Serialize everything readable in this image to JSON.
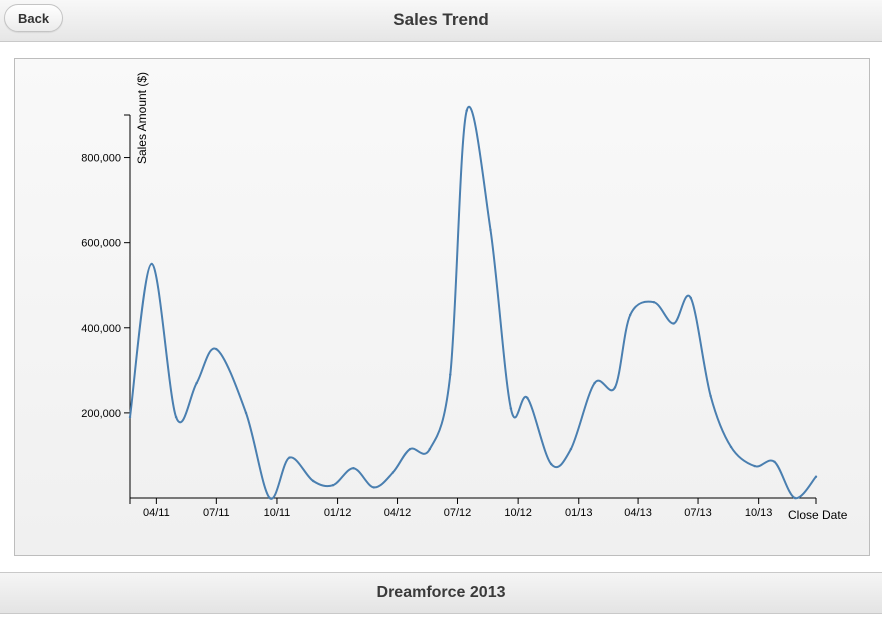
{
  "header": {
    "back_label": "Back",
    "title": "Sales Trend"
  },
  "footer": {
    "title": "Dreamforce 2013"
  },
  "chart_data": {
    "type": "line",
    "xlabel": "Close Date",
    "ylabel": "Sales Amount ($)",
    "ylim": [
      0,
      900000
    ],
    "yticks": [
      200000,
      400000,
      600000,
      800000
    ],
    "ytick_labels": [
      "200,000",
      "400,000",
      "600,000",
      "800,000"
    ],
    "xlim": [
      "2011-02-20",
      "2013-12-27"
    ],
    "xticks": [
      "2011-04-01",
      "2011-07-01",
      "2011-10-01",
      "2012-01-01",
      "2012-04-01",
      "2012-07-01",
      "2012-10-01",
      "2013-01-01",
      "2013-04-01",
      "2013-07-01",
      "2013-10-01"
    ],
    "xtick_labels": [
      "04/11",
      "07/11",
      "10/11",
      "01/12",
      "04/12",
      "07/12",
      "10/12",
      "01/13",
      "04/13",
      "07/13",
      "10/13"
    ],
    "grid": false,
    "line_color": "#4a7fb0",
    "series": [
      {
        "x": [
          "2011-02-20",
          "2011-03-25",
          "2011-05-01",
          "2011-06-01",
          "2011-07-01",
          "2011-08-15",
          "2011-09-20",
          "2011-10-20",
          "2011-11-25",
          "2011-12-25",
          "2012-01-25",
          "2012-02-25",
          "2012-03-25",
          "2012-04-20",
          "2012-05-20",
          "2012-06-20",
          "2012-07-15",
          "2012-08-20",
          "2012-09-20",
          "2012-10-15",
          "2012-11-20",
          "2012-12-20",
          "2013-01-25",
          "2013-02-25",
          "2013-03-20",
          "2013-04-25",
          "2013-05-25",
          "2013-06-20",
          "2013-07-20",
          "2013-08-20",
          "2013-09-25",
          "2013-10-25",
          "2013-11-25",
          "2013-12-27"
        ],
        "y": [
          190000,
          550000,
          190000,
          270000,
          350000,
          200000,
          0,
          95000,
          40000,
          30000,
          70000,
          25000,
          60000,
          115000,
          115000,
          290000,
          910000,
          630000,
          210000,
          235000,
          80000,
          115000,
          270000,
          260000,
          430000,
          460000,
          410000,
          470000,
          240000,
          120000,
          75000,
          85000,
          0,
          50000
        ]
      }
    ]
  }
}
